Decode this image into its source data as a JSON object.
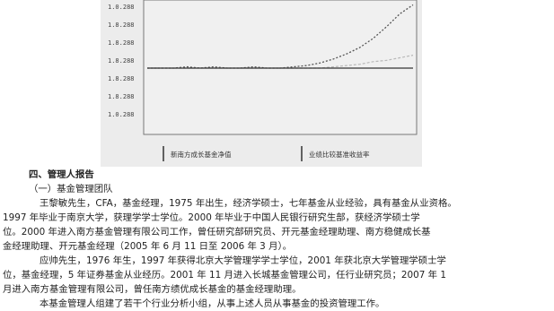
{
  "chart": {
    "y_ticks": [
      "1.0.288",
      "1.8.288",
      "1.8.288",
      "1.8.288",
      "1.8.288",
      "1.8.288",
      "1.0.288"
    ],
    "x_ticks": [
      "",
      "",
      "",
      "",
      "",
      ""
    ],
    "legend": [
      "新南方成长基金净值",
      "业绩比较基准收益率"
    ]
  },
  "chart_data": {
    "type": "line",
    "title": "",
    "xlabel": "",
    "ylabel": "",
    "ylim": [
      0,
      100
    ],
    "x": [
      0,
      1,
      2,
      3,
      4,
      5,
      6,
      7,
      8,
      9,
      10,
      11,
      12,
      13,
      14,
      15,
      16,
      17,
      18,
      19,
      20
    ],
    "series": [
      {
        "name": "新南方成长基金净值",
        "values": [
          50,
          50,
          50,
          51,
          50,
          51,
          50,
          50,
          51,
          50,
          50,
          51,
          52,
          54,
          57,
          61,
          66,
          73,
          82,
          92,
          99
        ]
      },
      {
        "name": "业绩比较基准收益率",
        "values": [
          50,
          50,
          50,
          50,
          50,
          50,
          50,
          50,
          50,
          50,
          50,
          50,
          50,
          50,
          51,
          52,
          53,
          55,
          56,
          58,
          60
        ]
      },
      {
        "values": [
          50,
          50,
          50,
          50,
          50,
          50,
          50,
          50,
          50,
          50,
          50,
          50,
          50,
          50,
          50,
          50,
          50,
          50,
          50,
          50,
          50
        ]
      }
    ]
  },
  "document": {
    "section_title": "四、管理人报告",
    "subsection_title": "（一）基金管理团队",
    "lines": [
      "王黎敏先生，CFA，基金经理，1975 年出生，经济学硕士，七年基金从业经验，具有基金从业资格。",
      "1997 年毕业于南京大学，获理学学士学位。2000 年毕业于中国人民银行研究生部，获经济学硕士学",
      "位。2000 年进入南方基金管理有限公司工作，曾任研究部研究员、开元基金经理助理、南方稳健成长基",
      "金经理助理、开元基金经理（2005 年 6 月 11 日至 2006 年 3 月）。",
      "应帅先生，1976 年生，1997 年获得北京大学管理学学士学位，2001 年获北京大学管理学硕士学",
      "位，基金经理，5 年证券基金从业经历。2001 年 11 月进入长城基金管理公司，任行业研究员；2007 年 1",
      "月进入南方基金管理有限公司，曾任南方绩优成长基金的基金经理助理。",
      "本基金管理人组建了若干个行业分析小组，从事上述人员从事基金的投资管理工作。"
    ]
  }
}
